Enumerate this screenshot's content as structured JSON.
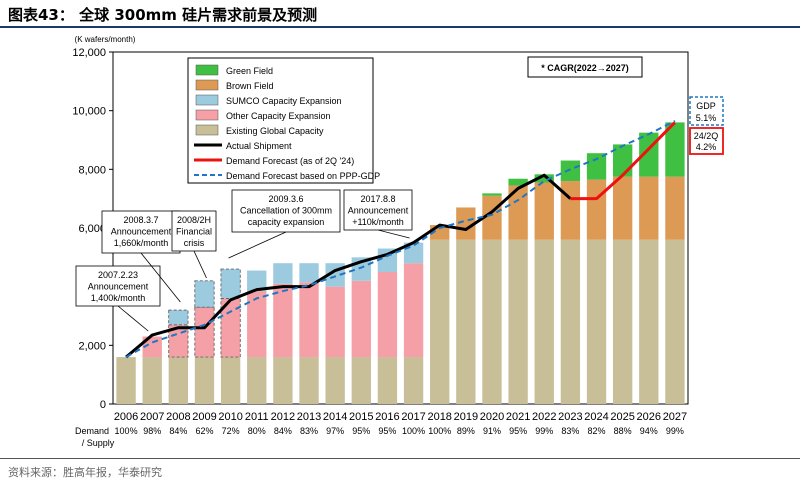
{
  "header": {
    "title": "图表43： 全球 300mm 硅片需求前景及预测"
  },
  "footer": {
    "source": "资料来源：胜高年报，华泰研究"
  },
  "chart_data": {
    "type": "bar",
    "stacked": true,
    "title": "全球 300mm 硅片需求前景及预测",
    "ylabel": "(K wafers/month)",
    "xlabel": "",
    "ylim": [
      0,
      12000
    ],
    "yticks": [
      0,
      2000,
      4000,
      6000,
      8000,
      10000,
      12000
    ],
    "ytick_labels": [
      "0",
      "2,000",
      "4,000",
      "6,000",
      "8,000",
      "10,000",
      "12,000"
    ],
    "categories": [
      "2006",
      "2007",
      "2008",
      "2009",
      "2010",
      "2011",
      "2012",
      "2013",
      "2014",
      "2015",
      "2016",
      "2017",
      "2018",
      "2019",
      "2020",
      "2021",
      "2022",
      "2023",
      "2024",
      "2025",
      "2026",
      "2027"
    ],
    "series": [
      {
        "name": "Existing Global Capacity",
        "color": "#c8bf98",
        "values": [
          1600,
          1600,
          1600,
          1600,
          1600,
          1600,
          1600,
          1600,
          1600,
          1600,
          1600,
          1600,
          5600,
          5600,
          5600,
          5600,
          5600,
          5600,
          5600,
          5600,
          5600,
          5600
        ]
      },
      {
        "name": "Other Capacity Expansion",
        "color": "#f4a0a6",
        "values": [
          0,
          700,
          1100,
          1700,
          2000,
          2250,
          2500,
          2550,
          2400,
          2600,
          2900,
          3200,
          0,
          0,
          0,
          0,
          0,
          0,
          0,
          0,
          0,
          0
        ]
      },
      {
        "name": "SUMCO Capacity Expansion",
        "color": "#9ccbe0",
        "values": [
          0,
          0,
          500,
          900,
          1000,
          700,
          700,
          650,
          800,
          800,
          800,
          700,
          0,
          0,
          0,
          0,
          0,
          0,
          0,
          0,
          0,
          0
        ]
      },
      {
        "name": "Brown Field",
        "color": "#dd9a55",
        "values": [
          0,
          0,
          0,
          0,
          0,
          0,
          0,
          0,
          0,
          0,
          0,
          0,
          500,
          1100,
          1500,
          1850,
          1950,
          2000,
          2050,
          2150,
          2150,
          2150
        ]
      },
      {
        "name": "Green Field",
        "color": "#3fc043",
        "values": [
          0,
          0,
          0,
          0,
          0,
          0,
          0,
          0,
          0,
          0,
          0,
          0,
          0,
          0,
          80,
          230,
          280,
          700,
          900,
          1100,
          1500,
          1850
        ]
      }
    ],
    "dashed_outline_years": [
      "2008",
      "2009",
      "2010"
    ],
    "lines": [
      {
        "name": "Actual Shipment",
        "color": "#000000",
        "style": "solid",
        "x": [
          "2006",
          "2007",
          "2008",
          "2009",
          "2010",
          "2011",
          "2012",
          "2013",
          "2014",
          "2015",
          "2016",
          "2017",
          "2018",
          "2019",
          "2020",
          "2021",
          "2022",
          "2023"
        ],
        "values": [
          1600,
          2350,
          2600,
          2600,
          3550,
          3900,
          4000,
          4000,
          4550,
          4850,
          5100,
          5500,
          6100,
          5950,
          6550,
          7350,
          7800,
          7000
        ]
      },
      {
        "name": "Demand Forecast (as of 2Q '24)",
        "color": "#ee1111",
        "style": "solid",
        "x": [
          "2023",
          "2024",
          "2025",
          "2026",
          "2027"
        ],
        "values": [
          7000,
          7000,
          7800,
          8700,
          9600
        ]
      },
      {
        "name": "Demand Forecast based on PPP-GDP",
        "color": "#1f77c4",
        "style": "dashed",
        "x": [
          "2006",
          "2007",
          "2008",
          "2009",
          "2010",
          "2011",
          "2012",
          "2013",
          "2014",
          "2015",
          "2016",
          "2017",
          "2018",
          "2019",
          "2020",
          "2021",
          "2022",
          "2023",
          "2024",
          "2025",
          "2026",
          "2027"
        ],
        "values": [
          1600,
          2100,
          2400,
          2700,
          3150,
          3600,
          3850,
          4050,
          4350,
          4650,
          5050,
          5400,
          6000,
          6250,
          6450,
          6950,
          7600,
          8000,
          8350,
          8800,
          9200,
          9650
        ]
      }
    ],
    "legend": {
      "position": "top-left",
      "entries": [
        "Green Field",
        "Brown Field",
        "SUMCO Capacity Expansion",
        "Other Capacity Expansion",
        "Existing Global Capacity",
        "Actual Shipment",
        "Demand Forecast (as of 2Q '24)",
        "Demand Forecast based on PPP-GDP"
      ]
    },
    "demand_supply": {
      "label": [
        "Demand",
        "/ Supply"
      ],
      "values": [
        "100%",
        "98%",
        "84%",
        "62%",
        "72%",
        "80%",
        "84%",
        "83%",
        "97%",
        "95%",
        "95%",
        "100%",
        "100%",
        "89%",
        "91%",
        "95%",
        "99%",
        "83%",
        "82%",
        "88%",
        "94%",
        "99%"
      ]
    },
    "cagr_box": "* CAGR(2022→2027)",
    "cagr_gdp": {
      "label": "GDP",
      "value": "5.1%",
      "color": "#1f77c4"
    },
    "cagr_forecast": {
      "label": "24/2Q",
      "value": "4.2%",
      "color": "#ee1111"
    },
    "annotations": [
      {
        "year": "2007",
        "lines": [
          "2007.2.23",
          "Announcement",
          "1,400k/month"
        ]
      },
      {
        "year": "2008",
        "lines": [
          "2008.3.7",
          "Announcement",
          "1,660k/month"
        ]
      },
      {
        "year": "2009",
        "lines": [
          "2008/2H",
          "Financial",
          "crisis"
        ]
      },
      {
        "year": "2010",
        "lines": [
          "2009.3.6",
          "Cancellation of 300mm",
          "capacity expansion"
        ]
      },
      {
        "year": "2017",
        "lines": [
          "2017.8.8",
          "Announcement",
          "+110k/month"
        ]
      }
    ]
  }
}
